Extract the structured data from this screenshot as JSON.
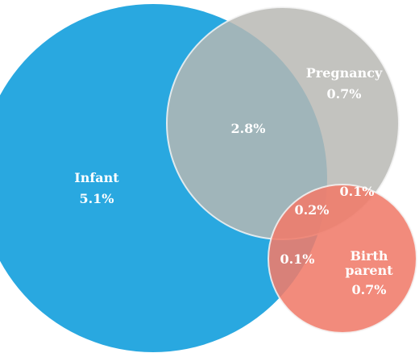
{
  "chart_data": {
    "type": "venn",
    "sets": [
      {
        "key": "infant",
        "label": "Infant",
        "value": "5.1%",
        "color": "#29A8E0"
      },
      {
        "key": "pregnancy",
        "label": "Pregnancy",
        "value": "0.7%",
        "color": "#B7B8B3"
      },
      {
        "key": "birth_parent",
        "label_lines": [
          "Birth",
          "parent"
        ],
        "value": "0.7%",
        "color": "#F07B6A"
      }
    ],
    "intersections": [
      {
        "sets": [
          "infant",
          "pregnancy"
        ],
        "value": "2.8%"
      },
      {
        "sets": [
          "pregnancy",
          "birth_parent"
        ],
        "value": "0.1%"
      },
      {
        "sets": [
          "infant",
          "birth_parent"
        ],
        "value": "0.1%"
      },
      {
        "sets": [
          "infant",
          "pregnancy",
          "birth_parent"
        ],
        "value": "0.2%"
      }
    ]
  }
}
